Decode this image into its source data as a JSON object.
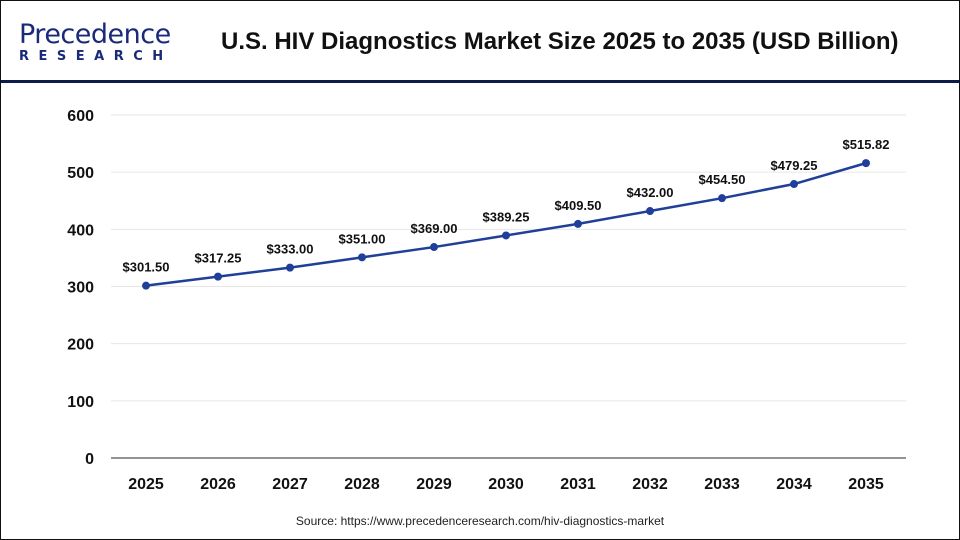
{
  "header": {
    "logo_line1": "Precedence",
    "logo_line2": "RESEARCH",
    "title": "U.S. HIV Diagnostics Market Size 2025 to 2035 (USD Billion)"
  },
  "source": "Source: https://www.precedenceresearch.com/hiv-diagnostics-market",
  "chart_data": {
    "type": "line",
    "title": "U.S. HIV Diagnostics Market Size 2025 to 2035 (USD Billion)",
    "categories": [
      "2025",
      "2026",
      "2027",
      "2028",
      "2029",
      "2030",
      "2031",
      "2032",
      "2033",
      "2034",
      "2035"
    ],
    "values": [
      301.5,
      317.25,
      333.0,
      351.0,
      369.0,
      389.25,
      409.5,
      432.0,
      454.5,
      479.25,
      515.82
    ],
    "labels": [
      "$301.50",
      "$317.25",
      "$333.00",
      "$351.00",
      "$369.00",
      "$389.25",
      "$409.50",
      "$432.00",
      "$454.50",
      "$479.25",
      "$515.82"
    ],
    "yticks": [
      "0",
      "100",
      "200",
      "300",
      "400",
      "500",
      "600"
    ],
    "ylim": [
      0,
      600
    ],
    "grid": true,
    "color": "#1f3f99"
  }
}
